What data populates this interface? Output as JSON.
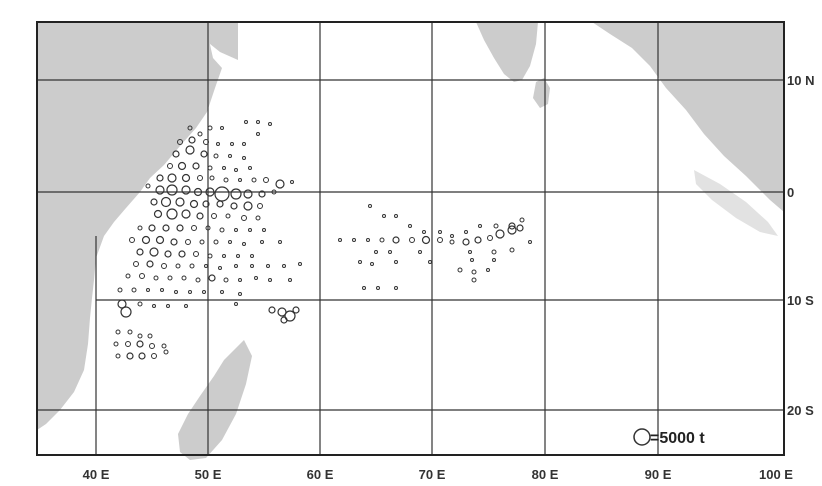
{
  "map": {
    "longitude_labels": [
      "40 E",
      "50 E",
      "60 E",
      "70 E",
      "80 E",
      "90 E",
      "100 E"
    ],
    "latitude_labels": [
      "10 N",
      "0",
      "10 S",
      "20 S"
    ],
    "legend": {
      "symbol": "open-circle",
      "text": "=5000 t"
    },
    "colors": {
      "land": "#cccccc",
      "frame": "#222222",
      "grid": "#333333",
      "sea": "#ffffff",
      "marker": "#333333"
    }
  }
}
